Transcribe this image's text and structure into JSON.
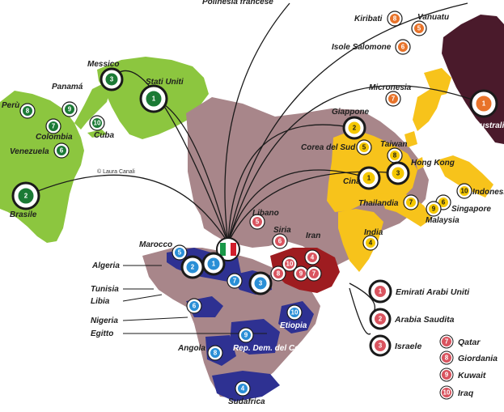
{
  "colors": {
    "americas": "#8cc63f",
    "east_asia": "#f7c31b",
    "australia": "#4a1a2b",
    "africa_blue": "#2e3192",
    "middle_east": "#9e1c20",
    "land": "#a8868a",
    "marker_green": "#1b7a35",
    "marker_yellow": "#f5c800",
    "marker_orange": "#e8732a",
    "marker_blue": "#2a8fd6",
    "marker_pink": "#d9545f"
  },
  "credit": "© Laura Canali",
  "top_cut_label": "Polinesia francese",
  "center_icon": "italy-flag-icon",
  "markers": {
    "brasile": {
      "label": "Brasile",
      "num": "2"
    },
    "stati_uniti": {
      "label": "Stati Uniti",
      "num": "1"
    },
    "messico": {
      "label": "Messico",
      "num": "3"
    },
    "panama": {
      "label": "Panamá",
      "num": "9"
    },
    "peru": {
      "label": "Perù",
      "num": "8"
    },
    "colombia": {
      "label": "Colombia",
      "num": "7"
    },
    "venezuela": {
      "label": "Venezuela",
      "num": "6"
    },
    "cuba": {
      "label": "Cuba",
      "num": "10"
    },
    "kiribati": {
      "label": "Kiribati",
      "num": "8"
    },
    "vanuatu": {
      "label": "Vanuatu",
      "num": "5"
    },
    "isole_salomone": {
      "label": "Isole Salomone",
      "num": "6"
    },
    "micronesia": {
      "label": "Micronesia",
      "num": "7"
    },
    "australia": {
      "label": "Australia",
      "num": "1"
    },
    "giappone": {
      "label": "Giappone",
      "num": "2"
    },
    "corea_del_sud": {
      "label": "Corea del Sud",
      "num": "5"
    },
    "taiwan": {
      "label": "Taiwan",
      "num": "8"
    },
    "hong_kong": {
      "label": "Hong Kong",
      "num": "3"
    },
    "cina": {
      "label": "Cina",
      "num": "1"
    },
    "thailandia": {
      "label": "Thailandia",
      "num": "7"
    },
    "singapore": {
      "label": "Singapore",
      "num": "6"
    },
    "malaysia": {
      "label": "Malaysia",
      "num": "9"
    },
    "indonesia": {
      "label": "Indonesia",
      "num": "10"
    },
    "india": {
      "label": "India",
      "num": "4"
    },
    "libano": {
      "label": "Libano",
      "num": "5"
    },
    "siria": {
      "label": "Siria",
      "num": "6"
    },
    "iran": {
      "label": "Iran",
      "num": "4"
    },
    "marocco": {
      "label": "Marocco",
      "num": "5"
    },
    "algeria": {
      "label": "Algeria",
      "num": "2"
    },
    "tunisia": {
      "label": "Tunisia",
      "num": "1"
    },
    "libia": {
      "label": "Libia",
      "num": "7"
    },
    "egitto": {
      "label": "Egitto",
      "num": "3"
    },
    "nigeria": {
      "label": "Nigeria",
      "num": "6"
    },
    "etiopia": {
      "label": "Etiopia",
      "num": "10"
    },
    "angola": {
      "label": "Angola",
      "num": "8"
    },
    "rd_congo": {
      "label": "Rep. Dem. del Congo",
      "num": "9"
    },
    "sudafrica": {
      "label": "Sudafrica",
      "num": "4"
    },
    "me_10": {
      "num": "10"
    },
    "me_9": {
      "num": "9"
    },
    "me_8": {
      "num": "8"
    },
    "me_7": {
      "num": "7"
    }
  },
  "legend": [
    {
      "num": "1",
      "label": "Emirati Arabi Uniti"
    },
    {
      "num": "2",
      "label": "Arabia Saudita"
    },
    {
      "num": "3",
      "label": "Israele"
    },
    {
      "num": "7",
      "label": "Qatar"
    },
    {
      "num": "8",
      "label": "Giordania"
    },
    {
      "num": "9",
      "label": "Kuwait"
    },
    {
      "num": "10",
      "label": "Iraq"
    }
  ]
}
